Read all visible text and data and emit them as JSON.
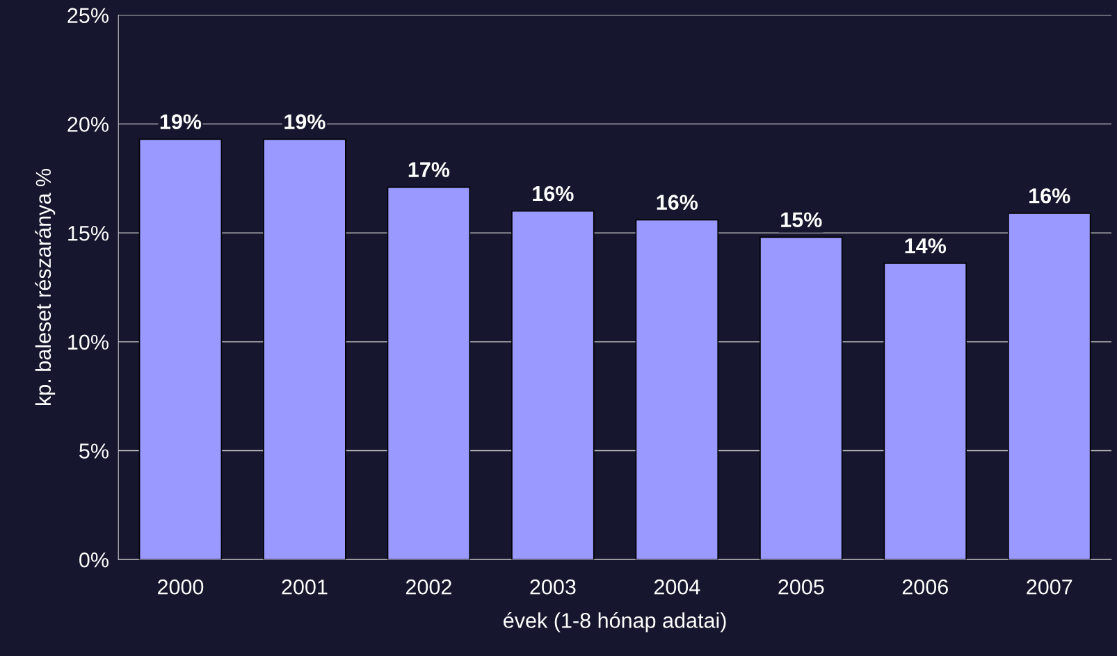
{
  "chart_data": {
    "type": "bar",
    "xlabel": "évek (1-8 hónap adatai)",
    "ylabel": "kp. baleset részaránya %",
    "categories": [
      "2000",
      "2001",
      "2002",
      "2003",
      "2004",
      "2005",
      "2006",
      "2007"
    ],
    "values": [
      19.3,
      19.3,
      17.1,
      16.0,
      15.6,
      14.8,
      13.6,
      15.9
    ],
    "value_labels": [
      "19%",
      "19%",
      "17%",
      "16%",
      "16%",
      "15%",
      "14%",
      "16%"
    ],
    "color": "#9999ff",
    "ylim": [
      0,
      25
    ],
    "yticks": [
      {
        "value": 0,
        "label": "0%"
      },
      {
        "value": 5,
        "label": "5%"
      },
      {
        "value": 10,
        "label": "10%"
      },
      {
        "value": 15,
        "label": "15%"
      },
      {
        "value": 20,
        "label": "20%"
      },
      {
        "value": 25,
        "label": "25%"
      }
    ],
    "grid": "y",
    "legend": false
  }
}
